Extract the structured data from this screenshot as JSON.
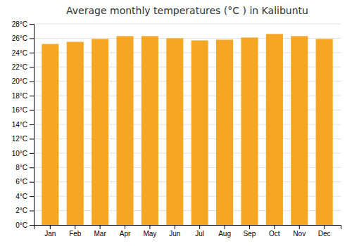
{
  "chart_data": {
    "type": "bar",
    "title": "Average monthly temperatures (°C ) in Kalibuntu",
    "categories": [
      "Jan",
      "Feb",
      "Mar",
      "Apr",
      "May",
      "Jun",
      "Jul",
      "Aug",
      "Sep",
      "Oct",
      "Nov",
      "Dec"
    ],
    "values": [
      25.2,
      25.5,
      25.9,
      26.3,
      26.3,
      26.0,
      25.7,
      25.8,
      26.1,
      26.6,
      26.3,
      25.9
    ],
    "color": "#F5A623",
    "ylim": [
      0,
      28
    ],
    "yticks": [
      {
        "value": 0,
        "label": "0°C"
      },
      {
        "value": 2,
        "label": "2°C"
      },
      {
        "value": 4,
        "label": "4°C"
      },
      {
        "value": 6,
        "label": "6°C"
      },
      {
        "value": 8,
        "label": "8°C"
      },
      {
        "value": 10,
        "label": "10°C"
      },
      {
        "value": 12,
        "label": "12°C"
      },
      {
        "value": 14,
        "label": "14°C"
      },
      {
        "value": 16,
        "label": "16°C"
      },
      {
        "value": 18,
        "label": "18°C"
      },
      {
        "value": 20,
        "label": "20°C"
      },
      {
        "value": 22,
        "label": "22°C"
      },
      {
        "value": 24,
        "label": "24°C"
      },
      {
        "value": 26,
        "label": "26°C"
      },
      {
        "value": 28,
        "label": "28°C"
      }
    ],
    "grid": true
  }
}
